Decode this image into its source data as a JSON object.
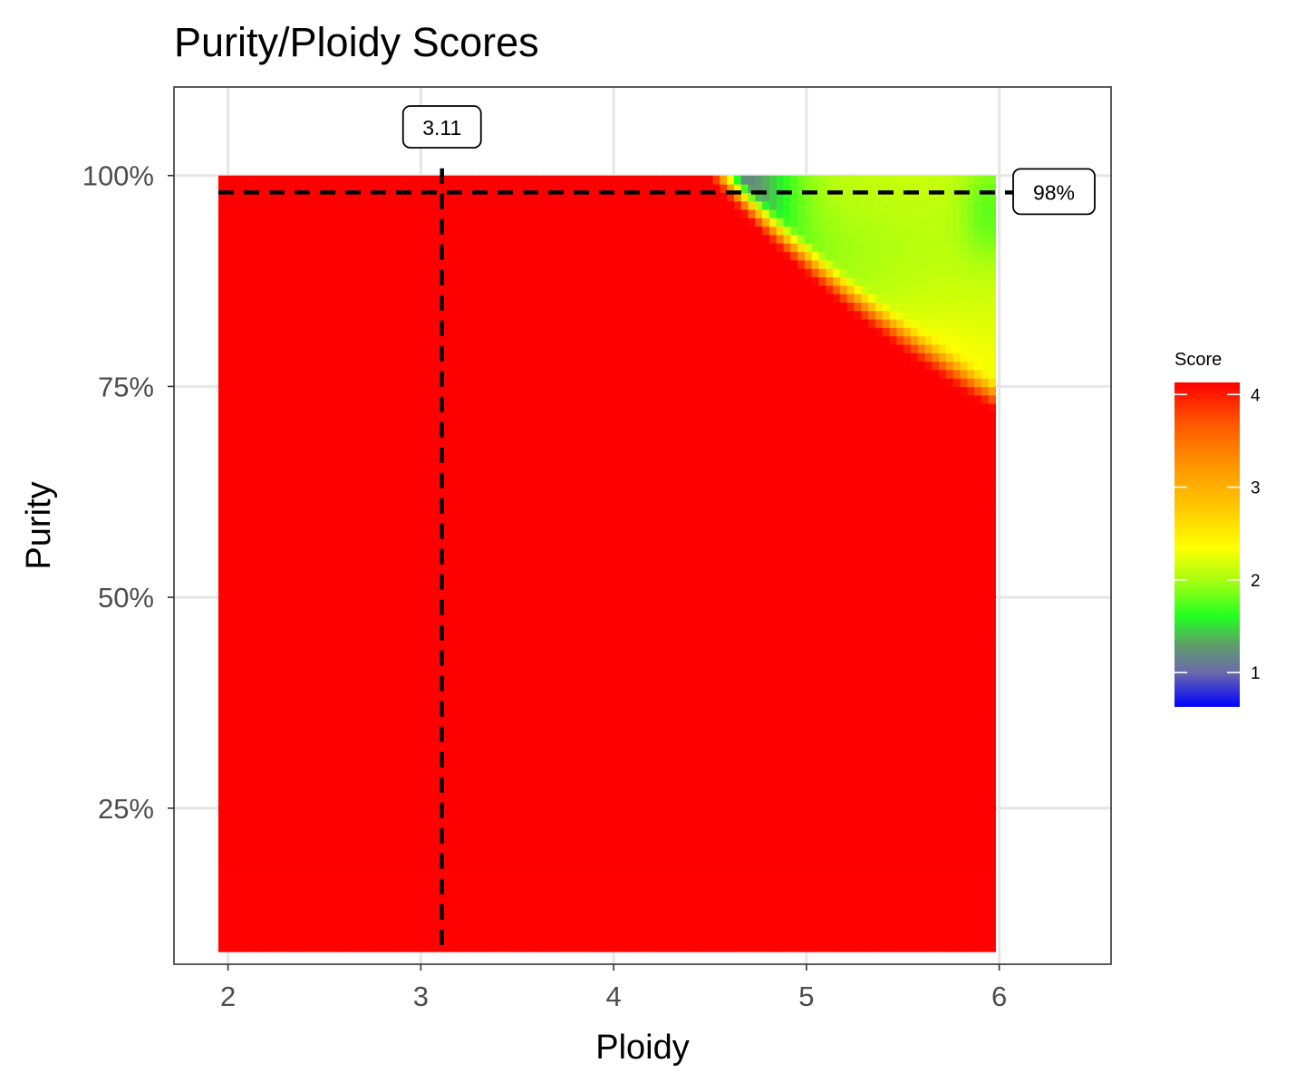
{
  "chart_data": {
    "type": "heatmap",
    "title": "Purity/Ploidy Scores",
    "xlabel": "Ploidy",
    "ylabel": "Purity",
    "xlim": [
      1.72,
      6.58
    ],
    "ylim": [
      0.065,
      1.105
    ],
    "xticks": [
      2,
      3,
      4,
      5,
      6
    ],
    "yticks": [
      0.25,
      0.5,
      0.75,
      1.0
    ],
    "ytick_labels": [
      "25%",
      "50%",
      "75%",
      "100%"
    ],
    "grid": true,
    "x_range": [
      1.95,
      5.98
    ],
    "y_range": [
      0.08,
      1.0
    ],
    "colorscale": {
      "title": "Score",
      "min": 0.63,
      "max": 4.13,
      "ticks": [
        1,
        2,
        3,
        4
      ],
      "stops": [
        {
          "value": 0.63,
          "color": "#0000ff"
        },
        {
          "value": 1.0,
          "color": "#6a6aaa"
        },
        {
          "value": 1.3,
          "color": "#5f9e6a"
        },
        {
          "value": 1.6,
          "color": "#22ff22"
        },
        {
          "value": 2.0,
          "color": "#a8ff10"
        },
        {
          "value": 2.35,
          "color": "#ffff00"
        },
        {
          "value": 2.75,
          "color": "#ffcc00"
        },
        {
          "value": 3.2,
          "color": "#ff9900"
        },
        {
          "value": 3.7,
          "color": "#ff5500"
        },
        {
          "value": 4.13,
          "color": "#ff0000"
        }
      ]
    },
    "optimum": {
      "ploidy": 3.11,
      "purity": 0.98,
      "ploidy_label": "3.11",
      "purity_label": "98%"
    }
  }
}
